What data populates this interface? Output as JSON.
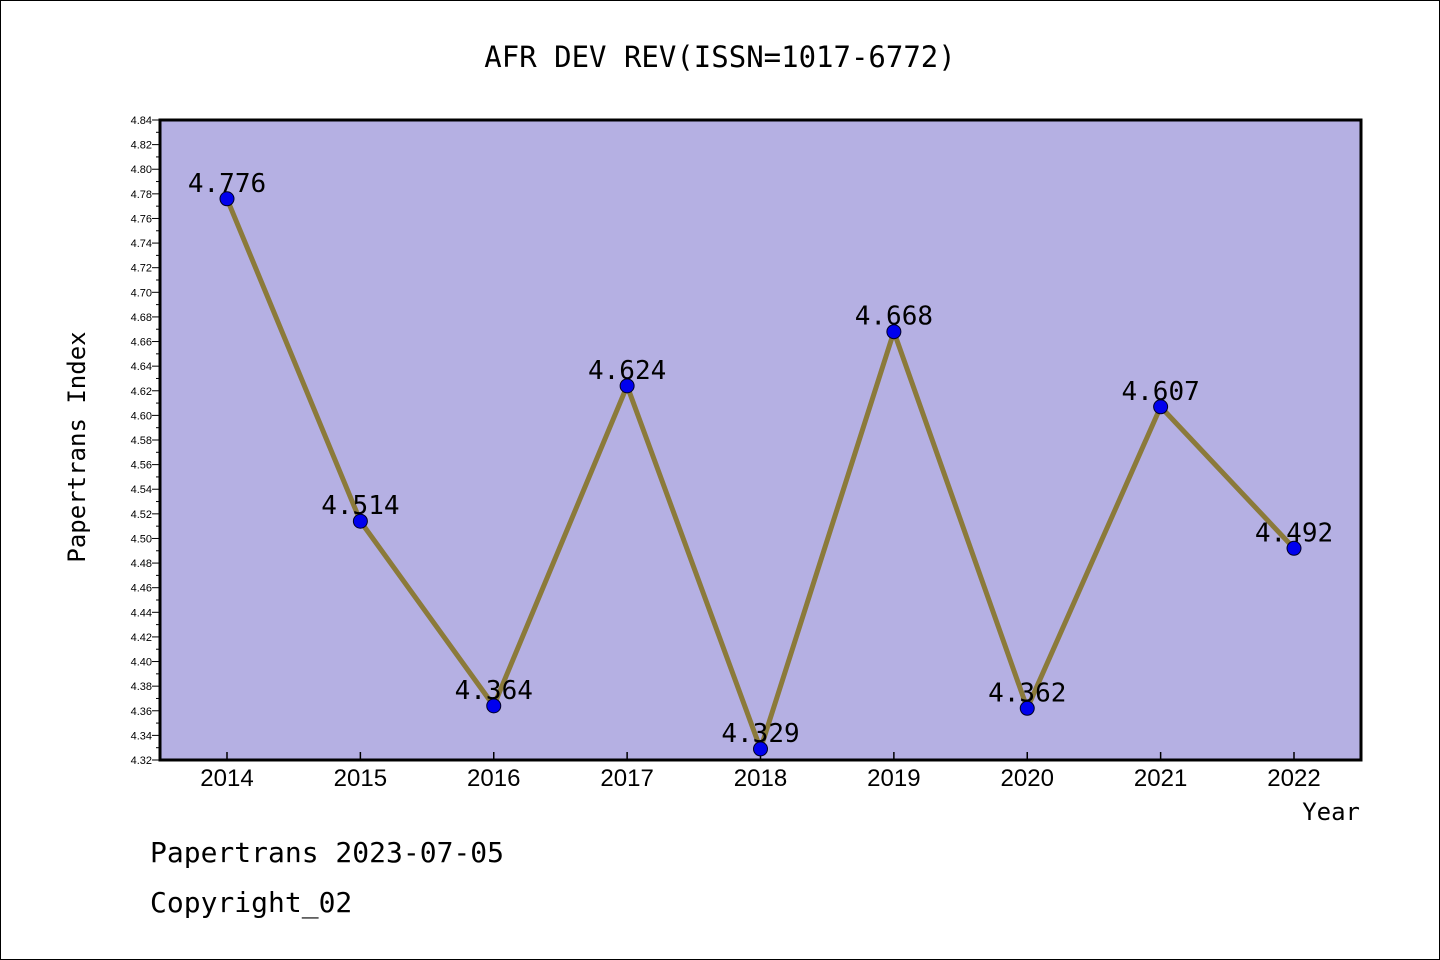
{
  "chart_data": {
    "type": "line",
    "title": "AFR DEV REV(ISSN=1017-6772)",
    "xlabel": "Year",
    "ylabel": "Papertrans Index",
    "categories": [
      "2014",
      "2015",
      "2016",
      "2017",
      "2018",
      "2019",
      "2020",
      "2021",
      "2022"
    ],
    "series": [
      {
        "values": [
          4.776,
          4.514,
          4.364,
          4.624,
          4.329,
          4.668,
          4.362,
          4.607,
          4.492
        ]
      }
    ],
    "data_labels": [
      "4.776",
      "4.514",
      "4.364",
      "4.624",
      "4.329",
      "4.668",
      "4.362",
      "4.607",
      "4.492"
    ],
    "ylim": [
      4.32,
      4.84
    ],
    "ytick_step": 0.02,
    "ytick_labels": [
      "4.32",
      "4.34",
      "4.36",
      "4.38",
      "4.40",
      "4.42",
      "4.44",
      "4.46",
      "4.48",
      "4.50",
      "4.52",
      "4.54",
      "4.56",
      "4.58",
      "4.60",
      "4.62",
      "4.64",
      "4.66",
      "4.68",
      "4.70",
      "4.72",
      "4.74",
      "4.76",
      "4.78",
      "4.80",
      "4.82",
      "4.84"
    ],
    "grid": false,
    "legend": "none",
    "colors": {
      "plot_background": "#b5b0e3",
      "line": "#8b7a3a",
      "marker": "#0000ee"
    }
  },
  "footer": {
    "line1": "Papertrans 2023-07-05",
    "line2": "Copyright_02"
  }
}
